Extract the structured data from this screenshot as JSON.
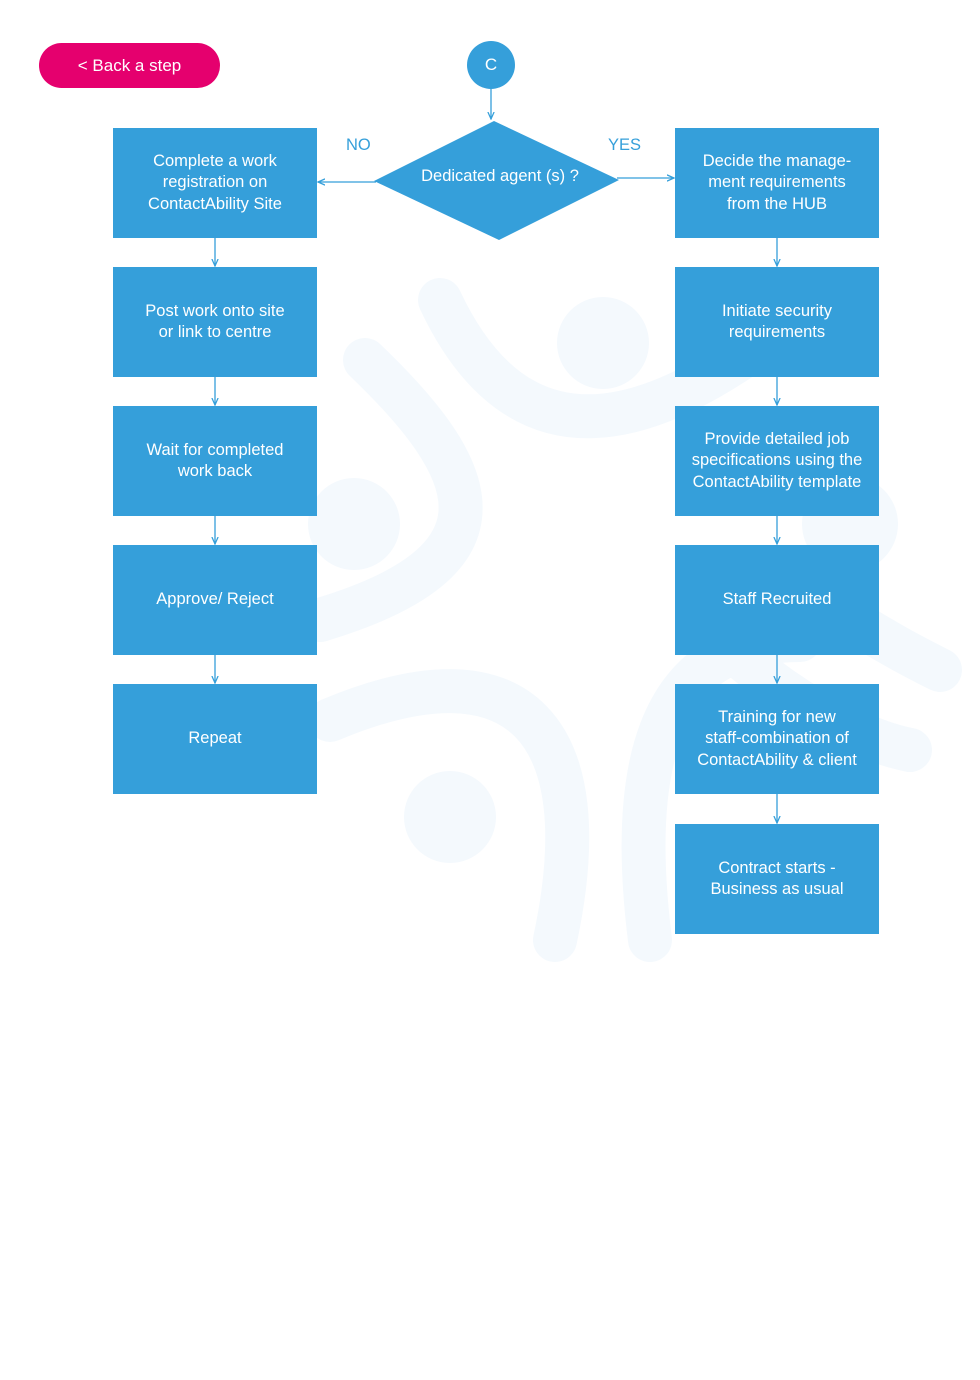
{
  "colors": {
    "primary": "#359fda",
    "accent": "#e5006e",
    "watermark": "#f4f9fd"
  },
  "back_button": {
    "label": "< Back a step"
  },
  "connector": {
    "label": "C"
  },
  "decision": {
    "label": "Dedicated agent (s) ?",
    "no_label": "NO",
    "yes_label": "YES"
  },
  "no_branch": [
    "Complete a work\nregistration on\nContactAbility Site",
    "Post work onto site\nor link to centre",
    "Wait for completed\nwork back",
    "Approve/ Reject",
    "Repeat"
  ],
  "yes_branch": [
    "Decide the manage-\nment requirements\nfrom the HUB",
    "Initiate security\nrequirements",
    "Provide detailed job\nspecifications using the\nContactAbility template",
    "Staff Recruited",
    "Training for new\nstaff-combination of\nContactAbility & client",
    "Contract starts -\nBusiness as usual"
  ]
}
